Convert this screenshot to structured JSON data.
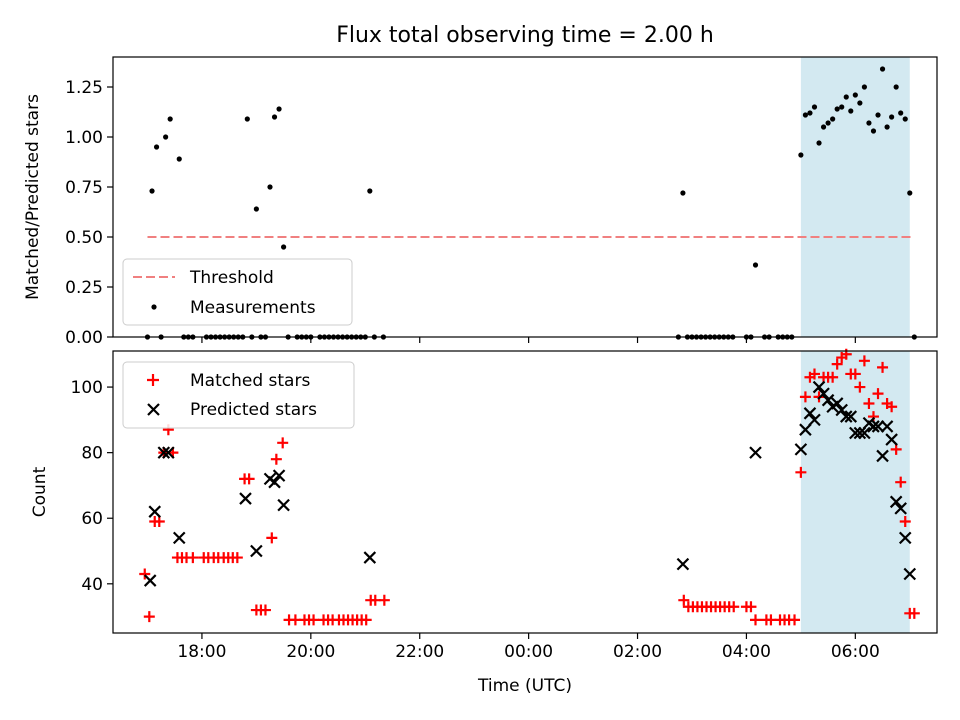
{
  "chart_data": [
    {
      "type": "scatter",
      "title": "Flux total observing time = 2.00 h",
      "xlabel": "",
      "ylabel": "Matched/Predicted stars",
      "ylim": [
        0,
        1.4
      ],
      "xlim": [
        "16:22",
        "07:30"
      ],
      "x_ticks": [
        "18:00",
        "20:00",
        "22:00",
        "00:00",
        "02:00",
        "04:00",
        "06:00"
      ],
      "y_ticks": [
        "0.00",
        "0.25",
        "0.50",
        "0.75",
        "1.00",
        "1.25"
      ],
      "highlight": {
        "from": "05:00",
        "to": "07:00",
        "color": "#d3e9f1"
      },
      "threshold": {
        "name": "Threshold",
        "value": 0.5,
        "from": "17:00",
        "to": "07:05",
        "color": "#f08080"
      },
      "legend": {
        "position": "lower-left",
        "entries": [
          "Threshold",
          "Measurements"
        ]
      },
      "series": [
        {
          "name": "Measurements",
          "color": "#000000",
          "points": [
            [
              "17:00",
              0.0
            ],
            [
              "17:05",
              0.73
            ],
            [
              "17:10",
              0.95
            ],
            [
              "17:15",
              0.0
            ],
            [
              "17:20",
              1.0
            ],
            [
              "17:25",
              1.09
            ],
            [
              "17:35",
              0.89
            ],
            [
              "17:40",
              0.0
            ],
            [
              "17:45",
              0.0
            ],
            [
              "17:50",
              0.0
            ],
            [
              "18:05",
              0.0
            ],
            [
              "18:10",
              0.0
            ],
            [
              "18:15",
              0.0
            ],
            [
              "18:20",
              0.0
            ],
            [
              "18:25",
              0.0
            ],
            [
              "18:30",
              0.0
            ],
            [
              "18:35",
              0.0
            ],
            [
              "18:40",
              0.0
            ],
            [
              "18:45",
              0.0
            ],
            [
              "18:50",
              1.09
            ],
            [
              "18:55",
              0.0
            ],
            [
              "19:00",
              0.64
            ],
            [
              "19:05",
              0.0
            ],
            [
              "19:10",
              0.0
            ],
            [
              "19:15",
              0.75
            ],
            [
              "19:20",
              1.1
            ],
            [
              "19:25",
              1.14
            ],
            [
              "19:30",
              0.45
            ],
            [
              "19:35",
              0.0
            ],
            [
              "19:45",
              0.0
            ],
            [
              "19:50",
              0.0
            ],
            [
              "19:55",
              0.0
            ],
            [
              "20:00",
              0.0
            ],
            [
              "20:10",
              0.0
            ],
            [
              "20:15",
              0.0
            ],
            [
              "20:20",
              0.0
            ],
            [
              "20:25",
              0.0
            ],
            [
              "20:30",
              0.0
            ],
            [
              "20:35",
              0.0
            ],
            [
              "20:40",
              0.0
            ],
            [
              "20:45",
              0.0
            ],
            [
              "20:50",
              0.0
            ],
            [
              "20:55",
              0.0
            ],
            [
              "21:00",
              0.0
            ],
            [
              "21:05",
              0.73
            ],
            [
              "21:10",
              0.0
            ],
            [
              "21:20",
              0.0
            ],
            [
              "02:45",
              0.0
            ],
            [
              "02:50",
              0.72
            ],
            [
              "02:55",
              0.0
            ],
            [
              "03:00",
              0.0
            ],
            [
              "03:05",
              0.0
            ],
            [
              "03:10",
              0.0
            ],
            [
              "03:15",
              0.0
            ],
            [
              "03:20",
              0.0
            ],
            [
              "03:25",
              0.0
            ],
            [
              "03:30",
              0.0
            ],
            [
              "03:35",
              0.0
            ],
            [
              "03:40",
              0.0
            ],
            [
              "03:45",
              0.0
            ],
            [
              "04:00",
              0.0
            ],
            [
              "04:05",
              0.0
            ],
            [
              "04:10",
              0.36
            ],
            [
              "04:20",
              0.0
            ],
            [
              "04:25",
              0.0
            ],
            [
              "04:35",
              0.0
            ],
            [
              "04:40",
              0.0
            ],
            [
              "04:45",
              0.0
            ],
            [
              "04:50",
              0.0
            ],
            [
              "05:00",
              0.91
            ],
            [
              "05:05",
              1.11
            ],
            [
              "05:10",
              1.12
            ],
            [
              "05:15",
              1.15
            ],
            [
              "05:20",
              0.97
            ],
            [
              "05:25",
              1.05
            ],
            [
              "05:30",
              1.07
            ],
            [
              "05:35",
              1.09
            ],
            [
              "05:40",
              1.14
            ],
            [
              "05:45",
              1.15
            ],
            [
              "05:50",
              1.2
            ],
            [
              "05:55",
              1.13
            ],
            [
              "06:00",
              1.21
            ],
            [
              "06:05",
              1.17
            ],
            [
              "06:10",
              1.25
            ],
            [
              "06:15",
              1.07
            ],
            [
              "06:20",
              1.03
            ],
            [
              "06:25",
              1.11
            ],
            [
              "06:30",
              1.34
            ],
            [
              "06:35",
              1.05
            ],
            [
              "06:40",
              1.1
            ],
            [
              "06:45",
              1.25
            ],
            [
              "06:50",
              1.12
            ],
            [
              "06:55",
              1.09
            ],
            [
              "07:00",
              0.72
            ],
            [
              "07:05",
              0.0
            ]
          ]
        }
      ]
    },
    {
      "type": "scatter",
      "title": "",
      "xlabel": "Time (UTC)",
      "ylabel": "Count",
      "ylim": [
        25,
        111
      ],
      "xlim": [
        "16:22",
        "07:30"
      ],
      "x_ticks": [
        "18:00",
        "20:00",
        "22:00",
        "00:00",
        "02:00",
        "04:00",
        "06:00"
      ],
      "y_ticks": [
        "40",
        "60",
        "80",
        "100"
      ],
      "highlight": {
        "from": "05:00",
        "to": "07:00",
        "color": "#d3e9f1"
      },
      "legend": {
        "position": "top-left",
        "entries": [
          "Matched stars",
          "Predicted stars"
        ]
      },
      "series": [
        {
          "name": "Matched stars",
          "marker": "plus",
          "color": "#ff0000",
          "points": [
            [
              "16:57",
              43
            ],
            [
              "17:02",
              30
            ],
            [
              "17:08",
              59
            ],
            [
              "17:13",
              59
            ],
            [
              "17:18",
              80
            ],
            [
              "17:23",
              87
            ],
            [
              "17:28",
              80
            ],
            [
              "17:33",
              48
            ],
            [
              "17:38",
              48
            ],
            [
              "17:43",
              48
            ],
            [
              "17:50",
              48
            ],
            [
              "18:02",
              48
            ],
            [
              "18:07",
              48
            ],
            [
              "18:13",
              48
            ],
            [
              "18:18",
              48
            ],
            [
              "18:24",
              48
            ],
            [
              "18:29",
              48
            ],
            [
              "18:34",
              48
            ],
            [
              "18:39",
              48
            ],
            [
              "18:47",
              72
            ],
            [
              "18:52",
              72
            ],
            [
              "19:00",
              32
            ],
            [
              "19:05",
              32
            ],
            [
              "19:10",
              32
            ],
            [
              "19:17",
              54
            ],
            [
              "19:22",
              78
            ],
            [
              "19:29",
              83
            ],
            [
              "19:36",
              29
            ],
            [
              "19:43",
              29
            ],
            [
              "19:53",
              29
            ],
            [
              "19:58",
              29
            ],
            [
              "20:03",
              29
            ],
            [
              "20:14",
              29
            ],
            [
              "20:19",
              29
            ],
            [
              "20:24",
              29
            ],
            [
              "20:31",
              29
            ],
            [
              "20:36",
              29
            ],
            [
              "20:41",
              29
            ],
            [
              "20:46",
              29
            ],
            [
              "20:51",
              29
            ],
            [
              "20:56",
              29
            ],
            [
              "21:01",
              29
            ],
            [
              "21:06",
              35
            ],
            [
              "21:11",
              35
            ],
            [
              "21:21",
              35
            ],
            [
              "02:51",
              35
            ],
            [
              "02:56",
              33
            ],
            [
              "03:01",
              33
            ],
            [
              "03:06",
              33
            ],
            [
              "03:11",
              33
            ],
            [
              "03:16",
              33
            ],
            [
              "03:21",
              33
            ],
            [
              "03:26",
              33
            ],
            [
              "03:31",
              33
            ],
            [
              "03:36",
              33
            ],
            [
              "03:41",
              33
            ],
            [
              "03:46",
              33
            ],
            [
              "04:00",
              33
            ],
            [
              "04:05",
              33
            ],
            [
              "04:10",
              29
            ],
            [
              "04:22",
              29
            ],
            [
              "04:27",
              29
            ],
            [
              "04:37",
              29
            ],
            [
              "04:42",
              29
            ],
            [
              "04:47",
              29
            ],
            [
              "04:53",
              29
            ],
            [
              "05:00",
              74
            ],
            [
              "05:05",
              97
            ],
            [
              "05:10",
              103
            ],
            [
              "05:15",
              104
            ],
            [
              "05:20",
              97
            ],
            [
              "05:25",
              103
            ],
            [
              "05:30",
              103
            ],
            [
              "05:35",
              103
            ],
            [
              "05:40",
              107
            ],
            [
              "05:45",
              109
            ],
            [
              "05:50",
              110
            ],
            [
              "05:55",
              104
            ],
            [
              "06:00",
              104
            ],
            [
              "06:05",
              100
            ],
            [
              "06:10",
              108
            ],
            [
              "06:15",
              95
            ],
            [
              "06:20",
              91
            ],
            [
              "06:25",
              98
            ],
            [
              "06:30",
              106
            ],
            [
              "06:35",
              95
            ],
            [
              "06:40",
              94
            ],
            [
              "06:45",
              81
            ],
            [
              "06:50",
              71
            ],
            [
              "06:55",
              59
            ],
            [
              "07:00",
              31
            ],
            [
              "07:05",
              31
            ]
          ]
        },
        {
          "name": "Predicted stars",
          "marker": "x",
          "color": "#000000",
          "points": [
            [
              "17:03",
              41
            ],
            [
              "17:08",
              62
            ],
            [
              "17:18",
              80
            ],
            [
              "17:23",
              80
            ],
            [
              "17:35",
              54
            ],
            [
              "18:48",
              66
            ],
            [
              "19:00",
              50
            ],
            [
              "19:15",
              72
            ],
            [
              "19:20",
              71
            ],
            [
              "19:25",
              73
            ],
            [
              "19:30",
              64
            ],
            [
              "21:05",
              48
            ],
            [
              "02:50",
              46
            ],
            [
              "04:10",
              80
            ],
            [
              "05:00",
              81
            ],
            [
              "05:05",
              87
            ],
            [
              "05:10",
              92
            ],
            [
              "05:15",
              90
            ],
            [
              "05:20",
              100
            ],
            [
              "05:25",
              98
            ],
            [
              "05:30",
              96
            ],
            [
              "05:35",
              94
            ],
            [
              "05:40",
              95
            ],
            [
              "05:45",
              93
            ],
            [
              "05:50",
              91
            ],
            [
              "05:55",
              91
            ],
            [
              "06:00",
              86
            ],
            [
              "06:05",
              86
            ],
            [
              "06:10",
              86
            ],
            [
              "06:15",
              89
            ],
            [
              "06:20",
              88
            ],
            [
              "06:25",
              88
            ],
            [
              "06:30",
              79
            ],
            [
              "06:35",
              88
            ],
            [
              "06:40",
              84
            ],
            [
              "06:45",
              65
            ],
            [
              "06:50",
              63
            ],
            [
              "06:55",
              54
            ],
            [
              "07:00",
              43
            ]
          ]
        }
      ]
    }
  ]
}
